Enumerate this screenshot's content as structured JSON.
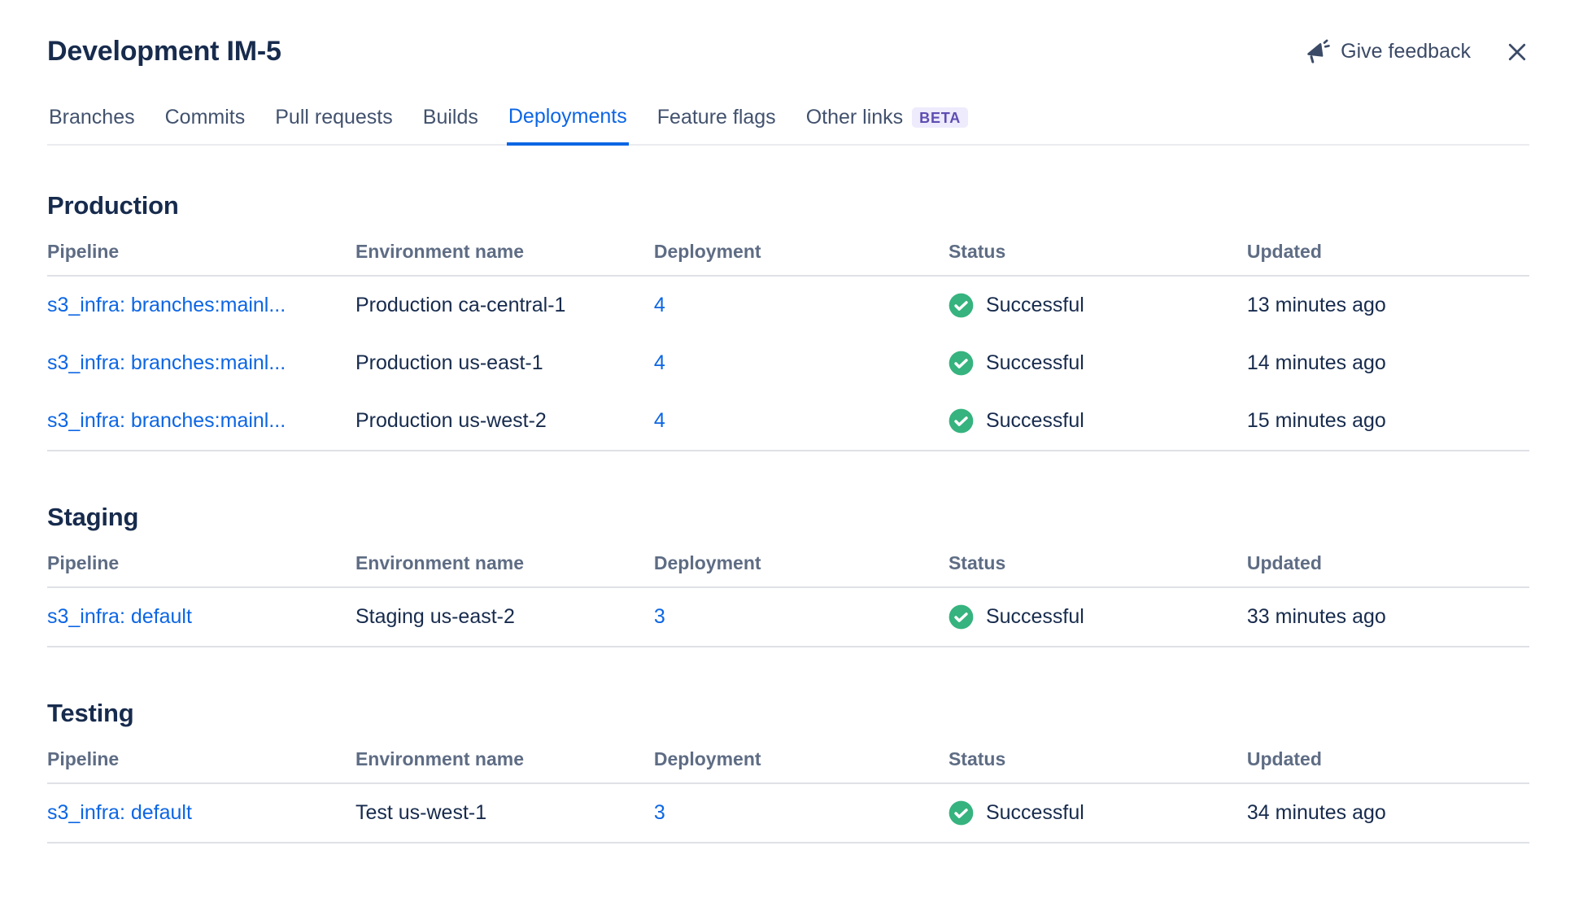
{
  "header": {
    "title": "Development IM-5",
    "feedback_label": "Give feedback"
  },
  "tabs": [
    {
      "label": "Branches",
      "active": false
    },
    {
      "label": "Commits",
      "active": false
    },
    {
      "label": "Pull requests",
      "active": false
    },
    {
      "label": "Builds",
      "active": false
    },
    {
      "label": "Deployments",
      "active": true
    },
    {
      "label": "Feature flags",
      "active": false
    },
    {
      "label": "Other links",
      "active": false,
      "badge": "BETA"
    }
  ],
  "columns": [
    "Pipeline",
    "Environment name",
    "Deployment",
    "Status",
    "Updated"
  ],
  "sections": [
    {
      "title": "Production",
      "rows": [
        {
          "pipeline": "s3_infra: branches:mainl...",
          "environment": "Production ca-central-1",
          "deployment": "4",
          "status": "Successful",
          "updated": "13 minutes ago"
        },
        {
          "pipeline": "s3_infra: branches:mainl...",
          "environment": "Production us-east-1",
          "deployment": "4",
          "status": "Successful",
          "updated": "14 minutes ago"
        },
        {
          "pipeline": "s3_infra: branches:mainl...",
          "environment": "Production us-west-2",
          "deployment": "4",
          "status": "Successful",
          "updated": "15 minutes ago"
        }
      ]
    },
    {
      "title": "Staging",
      "rows": [
        {
          "pipeline": "s3_infra: default",
          "environment": "Staging us-east-2",
          "deployment": "3",
          "status": "Successful",
          "updated": "33 minutes ago"
        }
      ]
    },
    {
      "title": "Testing",
      "rows": [
        {
          "pipeline": "s3_infra: default",
          "environment": "Test us-west-1",
          "deployment": "3",
          "status": "Successful",
          "updated": "34 minutes ago"
        }
      ]
    }
  ],
  "colors": {
    "accent": "#0C66E4",
    "success": "#36B37E",
    "title_text": "#172B4D",
    "muted_header_text": "#5E6C84",
    "beta_bg": "#EDEBFC",
    "beta_text": "#5E4DB2"
  }
}
